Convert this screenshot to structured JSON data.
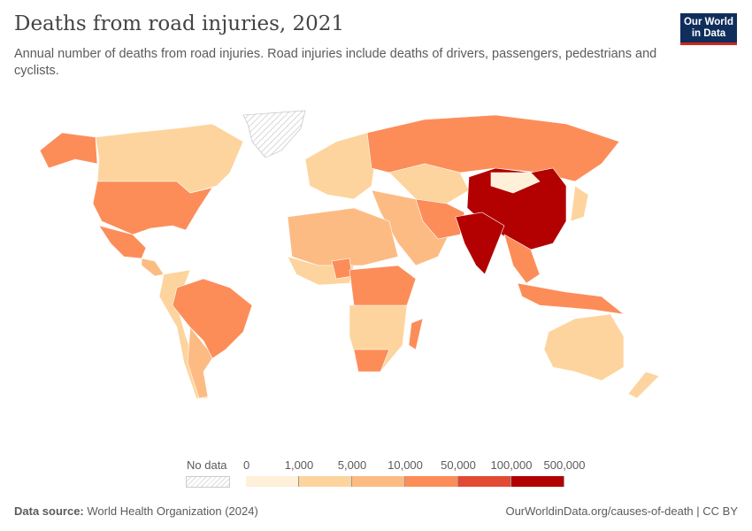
{
  "header": {
    "title": "Deaths from road injuries, 2021",
    "subtitle": "Annual number of deaths from road injuries. Road injuries include deaths of drivers, passengers, pedestrians and cyclists.",
    "logo": "Our World in Data"
  },
  "legend": {
    "no_data_label": "No data",
    "ticks": [
      "0",
      "1,000",
      "5,000",
      "10,000",
      "50,000",
      "100,000",
      "500,000"
    ],
    "colors": [
      "#fef0d9",
      "#fdd49e",
      "#fdbb84",
      "#fc8d59",
      "#e34a33",
      "#b30000"
    ]
  },
  "footer": {
    "source_label": "Data source:",
    "source": "World Health Organization (2024)",
    "link": "OurWorldinData.org/causes-of-death | CC BY"
  }
}
